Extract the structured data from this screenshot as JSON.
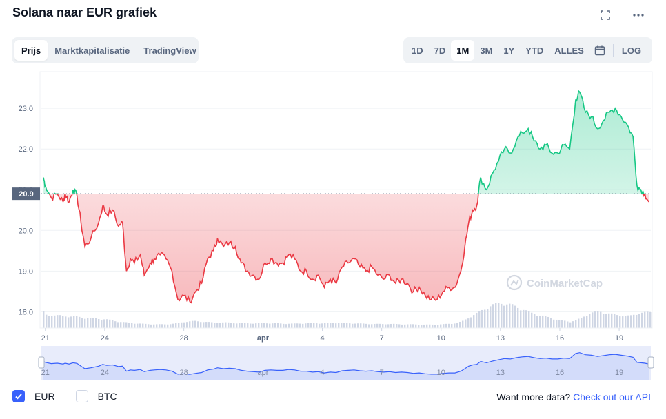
{
  "header": {
    "title": "Solana naar EUR grafiek"
  },
  "tabs": [
    {
      "label": "Prijs",
      "active": true
    },
    {
      "label": "Marktkapitalisatie",
      "active": false
    },
    {
      "label": "TradingView",
      "active": false
    }
  ],
  "ranges": [
    {
      "label": "1D",
      "active": false
    },
    {
      "label": "7D",
      "active": false
    },
    {
      "label": "1M",
      "active": true
    },
    {
      "label": "3M",
      "active": false
    },
    {
      "label": "1Y",
      "active": false
    },
    {
      "label": "YTD",
      "active": false
    },
    {
      "label": "ALLES",
      "active": false
    }
  ],
  "log_label": "LOG",
  "legend": {
    "eur_label": "EUR",
    "btc_label": "BTC"
  },
  "api": {
    "prefix": "Want more data?",
    "link": "Check out our API"
  },
  "watermark": "CoinMarketCap",
  "colors": {
    "up": "#16c784",
    "down": "#ea3943",
    "accent": "#3861fb"
  },
  "chart_data": {
    "type": "line",
    "y_ticks": [
      "18.0",
      "19.0",
      "20.0",
      "21.0",
      "22.0",
      "23.0"
    ],
    "ylim": [
      17.6,
      23.9
    ],
    "baseline": 20.9,
    "baseline_label": "20.9",
    "x_ticks": [
      {
        "label": "21",
        "t": 0
      },
      {
        "label": "24",
        "t": 3
      },
      {
        "label": "28",
        "t": 7
      },
      {
        "label": "apr",
        "t": 11
      },
      {
        "label": "4",
        "t": 14
      },
      {
        "label": "7",
        "t": 17
      },
      {
        "label": "10",
        "t": 20
      },
      {
        "label": "13",
        "t": 23
      },
      {
        "label": "16",
        "t": 26
      },
      {
        "label": "19",
        "t": 29
      }
    ],
    "xlim": [
      -0.2,
      30.6
    ],
    "price": [
      [
        -0.1,
        21.3
      ],
      [
        0.0,
        21.1
      ],
      [
        0.3,
        20.8
      ],
      [
        0.6,
        20.9
      ],
      [
        0.9,
        20.7
      ],
      [
        1.0,
        20.9
      ],
      [
        1.2,
        20.7
      ],
      [
        1.4,
        21.0
      ],
      [
        1.6,
        20.85
      ],
      [
        1.8,
        20.2
      ],
      [
        2.0,
        19.6
      ],
      [
        2.3,
        19.8
      ],
      [
        2.7,
        20.2
      ],
      [
        2.9,
        20.6
      ],
      [
        3.1,
        20.4
      ],
      [
        3.4,
        20.5
      ],
      [
        3.7,
        20.1
      ],
      [
        3.9,
        20.2
      ],
      [
        4.1,
        19.0
      ],
      [
        4.3,
        19.3
      ],
      [
        4.5,
        19.2
      ],
      [
        4.8,
        19.4
      ],
      [
        5.0,
        18.9
      ],
      [
        5.3,
        19.2
      ],
      [
        5.5,
        19.3
      ],
      [
        5.8,
        19.4
      ],
      [
        6.1,
        19.3
      ],
      [
        6.4,
        19.0
      ],
      [
        6.7,
        18.3
      ],
      [
        7.0,
        18.4
      ],
      [
        7.3,
        18.25
      ],
      [
        7.6,
        18.5
      ],
      [
        7.9,
        18.7
      ],
      [
        8.2,
        19.3
      ],
      [
        8.5,
        19.5
      ],
      [
        8.7,
        19.8
      ],
      [
        9.0,
        19.6
      ],
      [
        9.3,
        19.7
      ],
      [
        9.6,
        19.6
      ],
      [
        9.9,
        19.2
      ],
      [
        10.2,
        19.0
      ],
      [
        10.5,
        18.9
      ],
      [
        10.8,
        18.8
      ],
      [
        11.1,
        19.2
      ],
      [
        11.4,
        19.3
      ],
      [
        11.7,
        19.2
      ],
      [
        12.0,
        19.2
      ],
      [
        12.3,
        19.4
      ],
      [
        12.6,
        19.3
      ],
      [
        12.9,
        19.0
      ],
      [
        13.2,
        19.0
      ],
      [
        13.5,
        18.8
      ],
      [
        13.8,
        18.9
      ],
      [
        14.1,
        18.6
      ],
      [
        14.4,
        18.8
      ],
      [
        14.7,
        18.7
      ],
      [
        15.0,
        19.1
      ],
      [
        15.3,
        19.2
      ],
      [
        15.6,
        19.3
      ],
      [
        15.9,
        19.1
      ],
      [
        16.2,
        19.0
      ],
      [
        16.5,
        19.1
      ],
      [
        16.8,
        18.9
      ],
      [
        17.1,
        18.8
      ],
      [
        17.4,
        18.9
      ],
      [
        17.7,
        18.7
      ],
      [
        18.0,
        18.8
      ],
      [
        18.3,
        18.7
      ],
      [
        18.6,
        18.5
      ],
      [
        18.9,
        18.6
      ],
      [
        19.2,
        18.4
      ],
      [
        19.5,
        18.3
      ],
      [
        19.8,
        18.3
      ],
      [
        20.1,
        18.5
      ],
      [
        20.4,
        18.6
      ],
      [
        20.7,
        18.6
      ],
      [
        21.0,
        19.0
      ],
      [
        21.2,
        19.6
      ],
      [
        21.4,
        20.2
      ],
      [
        21.6,
        20.5
      ],
      [
        21.8,
        20.6
      ],
      [
        22.0,
        21.3
      ],
      [
        22.3,
        21.0
      ],
      [
        22.6,
        21.4
      ],
      [
        22.9,
        21.7
      ],
      [
        23.2,
        22.0
      ],
      [
        23.5,
        21.9
      ],
      [
        23.8,
        22.2
      ],
      [
        24.1,
        22.4
      ],
      [
        24.4,
        22.5
      ],
      [
        24.7,
        22.2
      ],
      [
        25.0,
        22.0
      ],
      [
        25.3,
        22.1
      ],
      [
        25.6,
        21.9
      ],
      [
        25.9,
        21.9
      ],
      [
        26.2,
        22.1
      ],
      [
        26.5,
        22.0
      ],
      [
        26.8,
        23.2
      ],
      [
        27.0,
        23.4
      ],
      [
        27.3,
        22.9
      ],
      [
        27.6,
        22.8
      ],
      [
        27.9,
        22.5
      ],
      [
        28.2,
        22.7
      ],
      [
        28.5,
        22.9
      ],
      [
        28.8,
        23.0
      ],
      [
        29.1,
        22.8
      ],
      [
        29.4,
        22.6
      ],
      [
        29.7,
        22.3
      ],
      [
        29.9,
        21.1
      ],
      [
        30.1,
        21.0
      ],
      [
        30.3,
        20.9
      ],
      [
        30.5,
        20.7
      ]
    ],
    "volume": [
      [
        -0.1,
        0.42
      ],
      [
        0.5,
        0.4
      ],
      [
        1.0,
        0.38
      ],
      [
        1.5,
        0.36
      ],
      [
        2.0,
        0.32
      ],
      [
        2.5,
        0.3
      ],
      [
        3.0,
        0.28
      ],
      [
        3.5,
        0.22
      ],
      [
        4.0,
        0.18
      ],
      [
        4.5,
        0.15
      ],
      [
        5.0,
        0.13
      ],
      [
        5.5,
        0.12
      ],
      [
        6.0,
        0.12
      ],
      [
        6.5,
        0.14
      ],
      [
        7.0,
        0.2
      ],
      [
        7.5,
        0.22
      ],
      [
        8.0,
        0.2
      ],
      [
        8.5,
        0.17
      ],
      [
        9.0,
        0.18
      ],
      [
        9.5,
        0.16
      ],
      [
        10.0,
        0.15
      ],
      [
        10.5,
        0.15
      ],
      [
        11.0,
        0.16
      ],
      [
        11.5,
        0.15
      ],
      [
        12.0,
        0.14
      ],
      [
        12.5,
        0.14
      ],
      [
        13.0,
        0.15
      ],
      [
        13.5,
        0.16
      ],
      [
        14.0,
        0.15
      ],
      [
        14.5,
        0.17
      ],
      [
        15.0,
        0.16
      ],
      [
        15.5,
        0.15
      ],
      [
        16.0,
        0.14
      ],
      [
        16.5,
        0.13
      ],
      [
        17.0,
        0.13
      ],
      [
        17.5,
        0.13
      ],
      [
        18.0,
        0.12
      ],
      [
        18.5,
        0.12
      ],
      [
        19.0,
        0.11
      ],
      [
        19.5,
        0.11
      ],
      [
        20.0,
        0.12
      ],
      [
        20.5,
        0.14
      ],
      [
        21.0,
        0.2
      ],
      [
        21.5,
        0.38
      ],
      [
        22.0,
        0.55
      ],
      [
        22.5,
        0.72
      ],
      [
        23.0,
        0.8
      ],
      [
        23.5,
        0.74
      ],
      [
        24.0,
        0.62
      ],
      [
        24.5,
        0.48
      ],
      [
        25.0,
        0.4
      ],
      [
        25.5,
        0.32
      ],
      [
        26.0,
        0.24
      ],
      [
        26.5,
        0.2
      ],
      [
        27.0,
        0.3
      ],
      [
        27.5,
        0.48
      ],
      [
        28.0,
        0.52
      ],
      [
        28.5,
        0.45
      ],
      [
        29.0,
        0.4
      ],
      [
        29.5,
        0.38
      ],
      [
        30.0,
        0.48
      ],
      [
        30.5,
        0.5
      ]
    ]
  }
}
